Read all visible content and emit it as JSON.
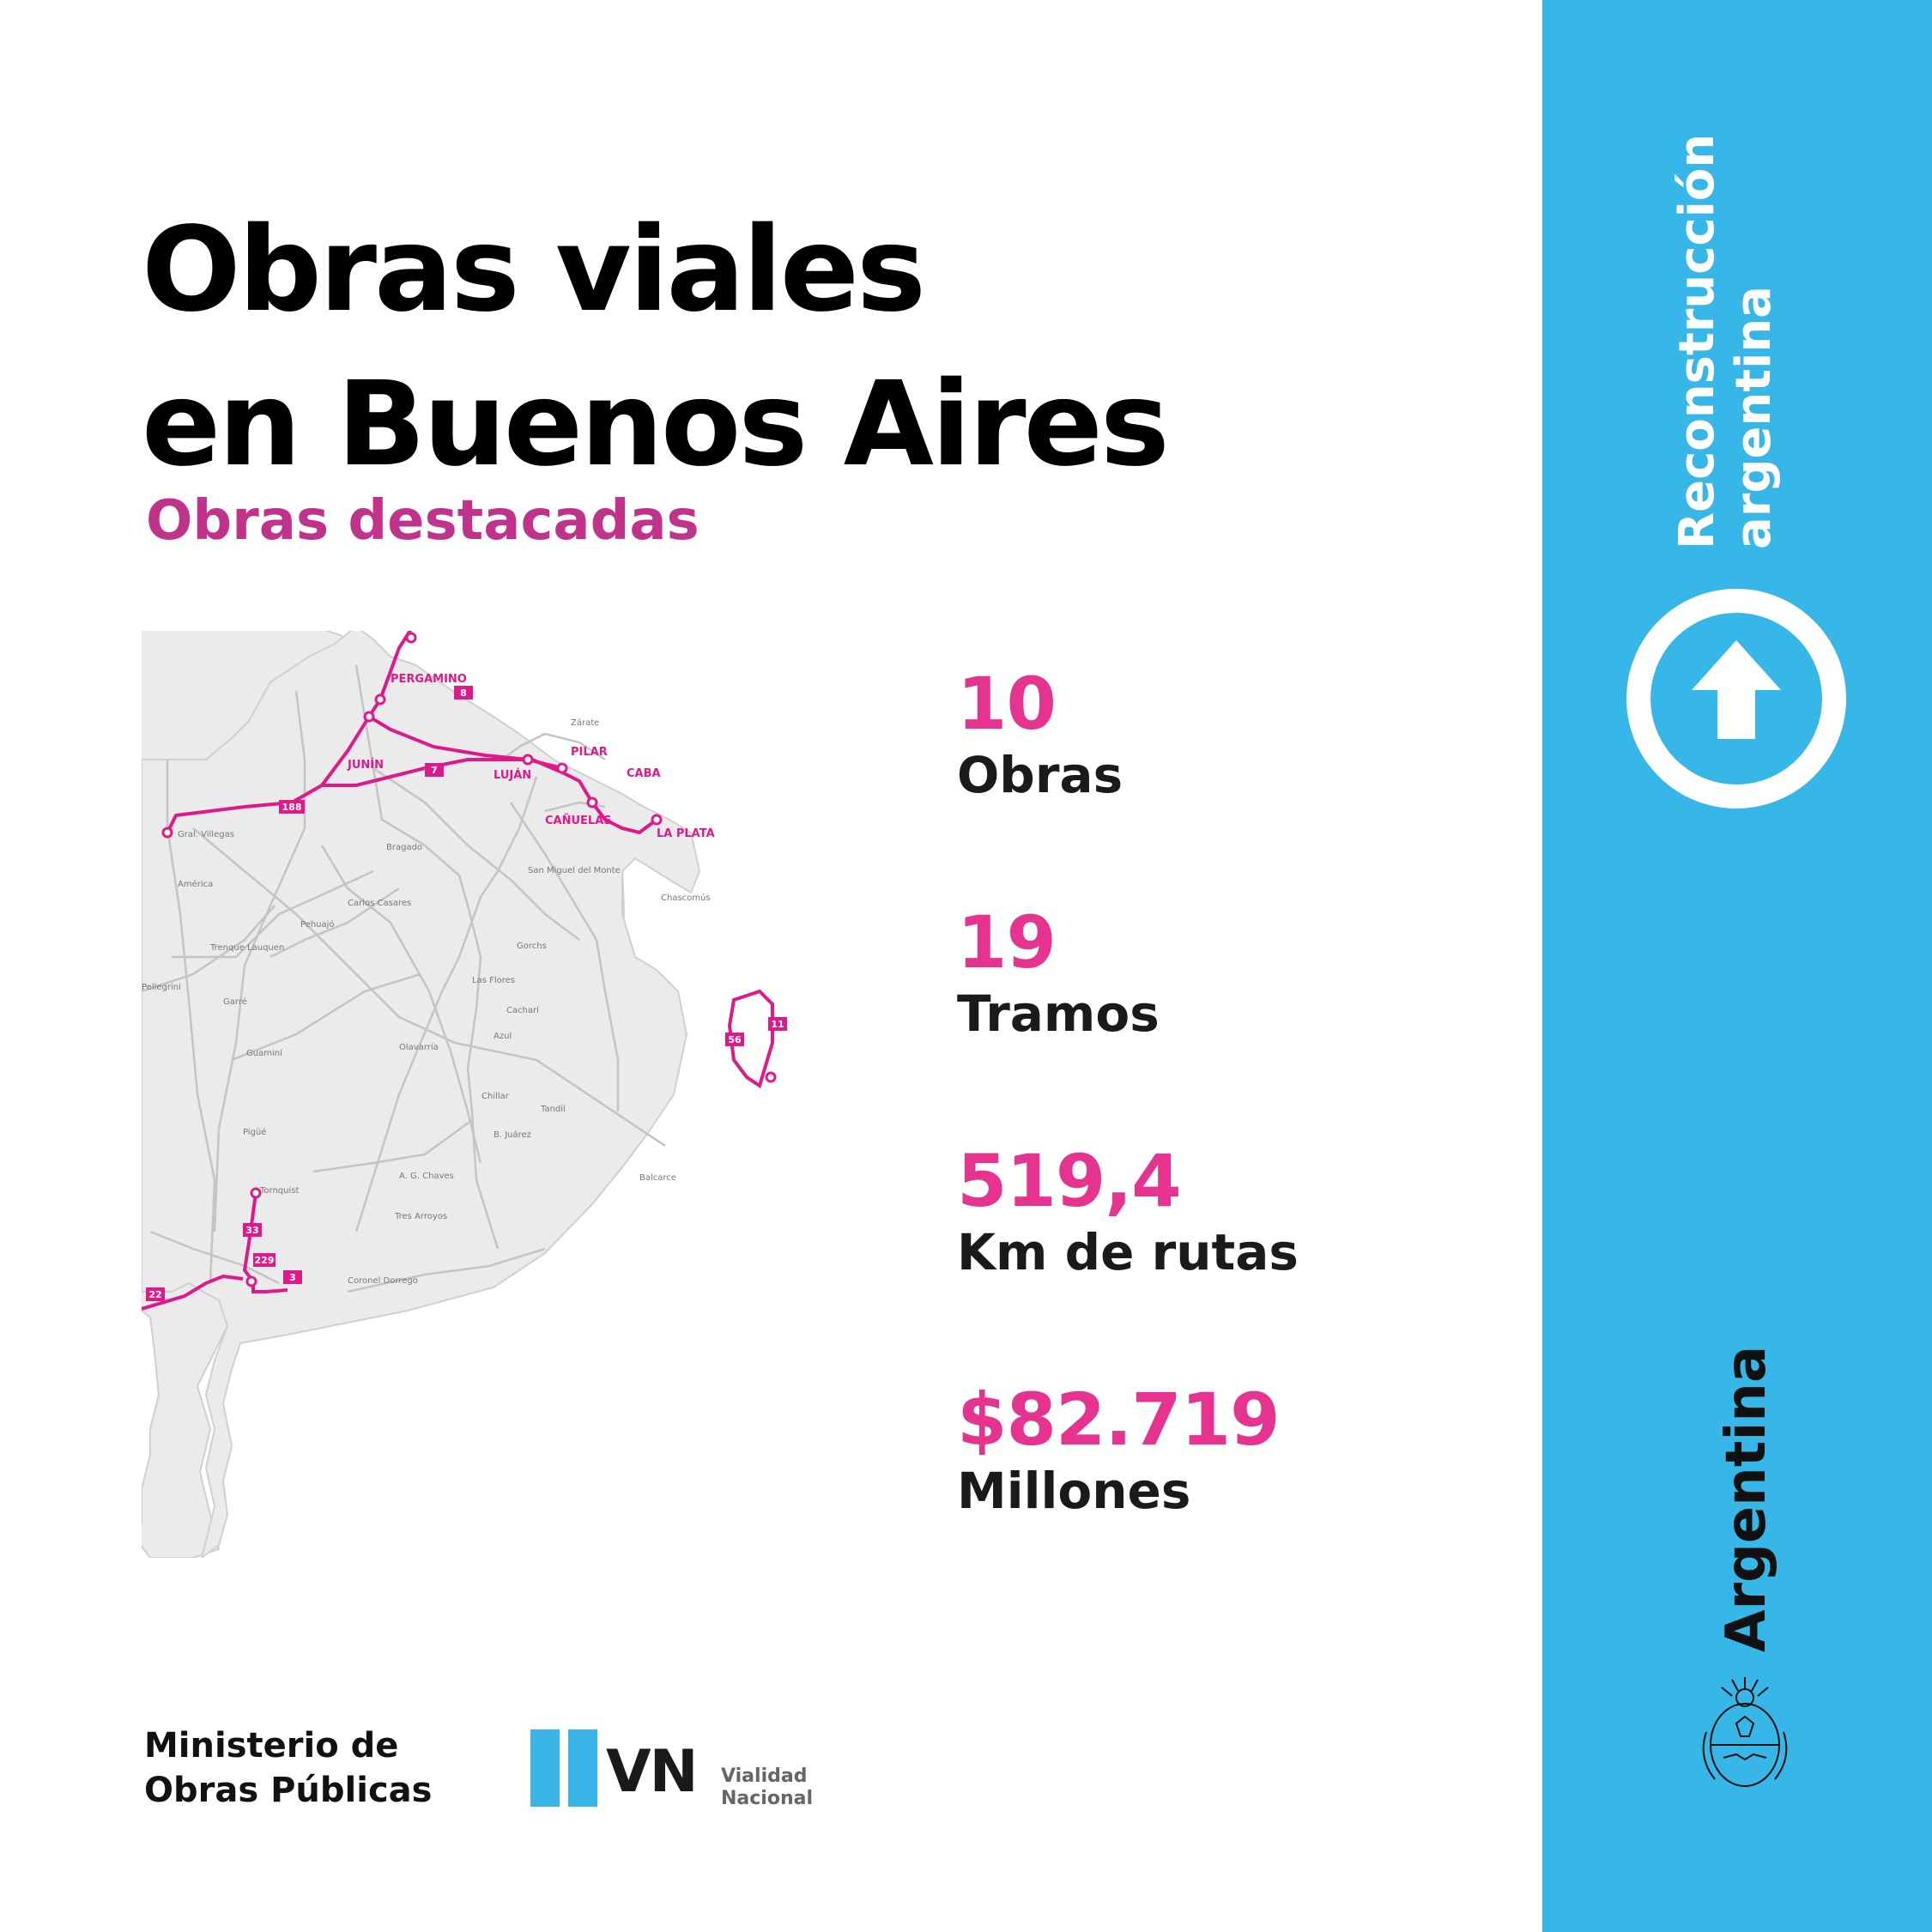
{
  "header": {
    "title_line1": "Obras viales",
    "title_line2": "en Buenos Aires",
    "subtitle": "Obras destacadas"
  },
  "stats": [
    {
      "value": "10",
      "label": "Obras"
    },
    {
      "value": "19",
      "label": "Tramos"
    },
    {
      "value": "519,4",
      "label": "Km de rutas"
    },
    {
      "value": "$82.719",
      "label": "Millones"
    }
  ],
  "map": {
    "featured_cities": [
      "PERGAMINO",
      "PILAR",
      "CABA",
      "JUNÍN",
      "LUJÁN",
      "CAÑUELAS",
      "LA PLATA"
    ],
    "other_cities": [
      "Zárate",
      "Gral. Villegas",
      "América",
      "Bragado",
      "Carlos Casares",
      "Pehuajó",
      "Trenque Lauquen",
      "San Miguel del Monte",
      "Chascomús",
      "Gorchs",
      "Las Flores",
      "Cacharí",
      "Pellegrini",
      "Garré",
      "Guaminí",
      "Olavarría",
      "Azul",
      "Chillar",
      "Tandil",
      "B. Juárez",
      "Pigüé",
      "Tornquist",
      "A. G. Chaves",
      "Tres Arroyos",
      "Balcarce",
      "Coronel Dorrego"
    ],
    "highlighted_routes": [
      "8",
      "7",
      "188",
      "56",
      "11",
      "33",
      "229",
      "22",
      "3"
    ],
    "colors": {
      "route": "#e0198a",
      "land": "#ebebeb",
      "road": "#c4c4c4"
    }
  },
  "footer": {
    "ministry_line1": "Ministerio de",
    "ministry_line2": "Obras Públicas",
    "vn_mark": "VN",
    "vn_name_line1": "Vialidad",
    "vn_name_line2": "Nacional"
  },
  "sidebar": {
    "tagline_line1": "Reconstrucción",
    "tagline_line2": "argentina",
    "country": "Argentina",
    "icon": "up-arrow-circle-icon",
    "seal_icon": "coat-of-arms-icon",
    "color": "#37b6e8"
  }
}
